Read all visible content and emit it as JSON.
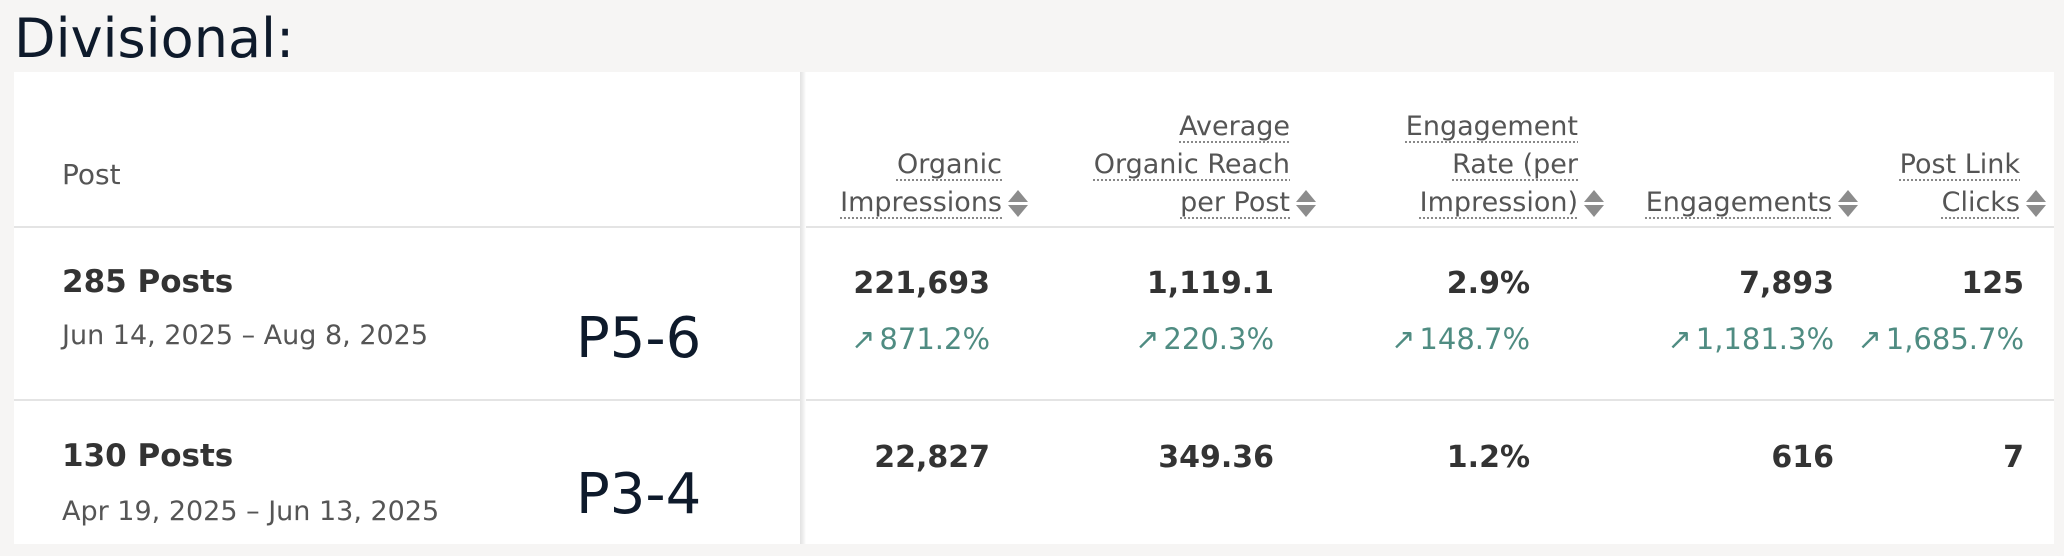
{
  "section_title": "Divisional:",
  "table": {
    "post_header": "Post",
    "columns": [
      {
        "id": "organic_impressions",
        "lines": [
          "Organic",
          "Impressions"
        ]
      },
      {
        "id": "avg_organic_reach",
        "lines": [
          "Average",
          "Organic Reach",
          "per Post"
        ]
      },
      {
        "id": "engagement_rate",
        "lines": [
          "Engagement",
          "Rate (per",
          "Impression)"
        ]
      },
      {
        "id": "engagements",
        "lines": [
          "Engagements"
        ]
      },
      {
        "id": "post_link_clicks",
        "lines": [
          "Post Link",
          "Clicks"
        ]
      }
    ],
    "rows": [
      {
        "title": "285 Posts",
        "range": "Jun 14, 2025 – Aug 8, 2025",
        "tag": "P5-6",
        "values": [
          "221,693",
          "1,119.1",
          "2.9%",
          "7,893",
          "125"
        ],
        "deltas": [
          "871.2%",
          "220.3%",
          "148.7%",
          "1,181.3%",
          "1,685.7%"
        ],
        "delta_icon": "arrow-up-right-icon"
      },
      {
        "title": "130 Posts",
        "range": "Apr 19, 2025 – Jun 13, 2025",
        "tag": "P3-4",
        "values": [
          "22,827",
          "349.36",
          "1.2%",
          "616",
          "7"
        ]
      }
    ]
  },
  "colors": {
    "positive_delta": "#4f8c82",
    "sort_icon": "#8c8c8c"
  }
}
